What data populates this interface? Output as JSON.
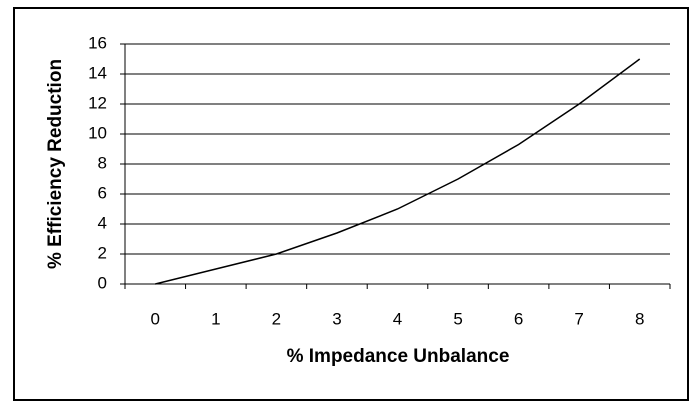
{
  "chart_data": {
    "type": "line",
    "x_label": "% Impedance Unbalance",
    "y_label": "% Efficiency Reduction",
    "categories": [
      "0",
      "1",
      "2",
      "3",
      "4",
      "5",
      "6",
      "7",
      "8"
    ],
    "values": [
      0,
      1,
      2,
      3.4,
      5,
      7,
      9.3,
      12,
      15
    ],
    "color": "#000000",
    "ylim": [
      0,
      16
    ],
    "yticks": [
      0,
      2,
      4,
      6,
      8,
      10,
      12,
      14,
      16
    ],
    "grid": true
  }
}
